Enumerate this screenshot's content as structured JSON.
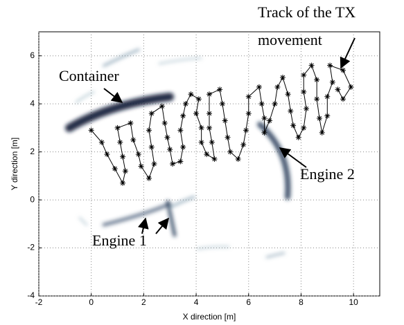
{
  "chart_data": {
    "type": "line",
    "xlabel": "X direction [m]",
    "ylabel": "Y direction [m]",
    "annotations": [
      "Track of the TX",
      "movement",
      "Container",
      "Engine 2",
      "Engine 1"
    ],
    "xlim": [
      -2,
      11
    ],
    "ylim": [
      -4,
      7
    ],
    "xticks": [
      -2,
      0,
      2,
      4,
      6,
      8,
      10
    ],
    "yticks": [
      -4,
      -2,
      0,
      2,
      4,
      6
    ],
    "grid": true,
    "x": [
      0,
      0.4,
      0.6,
      0.9,
      1.2,
      1.3,
      1.2,
      1.1,
      1.0,
      1.5,
      1.6,
      1.8,
      1.9,
      2.2,
      2.4,
      2.3,
      2.2,
      2.3,
      2.7,
      2.8,
      2.9,
      3.0,
      3.1,
      3.4,
      3.5,
      3.4,
      3.5,
      3.6,
      3.8,
      4.1,
      4.0,
      4.2,
      4.2,
      4.4,
      4.7,
      4.6,
      4.5,
      4.5,
      4.5,
      4.9,
      5.0,
      5.1,
      5.2,
      5.3,
      5.6,
      5.8,
      5.9,
      6.0,
      6.0,
      6.4,
      6.5,
      6.6,
      6.6,
      6.8,
      7.0,
      7.1,
      7.3,
      7.5,
      7.6,
      7.7,
      7.9,
      8.1,
      8.2,
      8.1,
      8.1,
      8.4,
      8.6,
      8.6,
      8.7,
      8.8,
      9.0,
      9.0,
      9.2,
      9.1,
      9.6,
      9.9,
      9.6,
      9.4
    ],
    "series": [
      {
        "color": "#000000",
        "values": [
          2.9,
          2.4,
          1.9,
          1.3,
          0.7,
          1.2,
          1.8,
          2.4,
          3.0,
          3.2,
          2.5,
          1.9,
          1.4,
          0.9,
          1.5,
          2.2,
          2.9,
          3.6,
          3.9,
          3.2,
          2.6,
          2.1,
          1.5,
          1.6,
          2.2,
          2.9,
          3.5,
          4.0,
          4.4,
          4.2,
          3.6,
          3.0,
          2.4,
          1.9,
          1.7,
          2.4,
          3.0,
          3.6,
          4.4,
          4.6,
          4.0,
          3.3,
          2.6,
          2.0,
          1.7,
          2.3,
          2.9,
          3.6,
          4.3,
          4.7,
          4.0,
          3.4,
          2.8,
          3.3,
          4.0,
          4.7,
          5.1,
          4.4,
          3.7,
          3.1,
          2.6,
          3.0,
          3.8,
          4.5,
          5.2,
          5.6,
          5.0,
          4.2,
          3.4,
          2.8,
          3.5,
          4.3,
          4.9,
          5.6,
          5.4,
          4.7,
          4.2,
          4.6
        ]
      }
    ]
  }
}
